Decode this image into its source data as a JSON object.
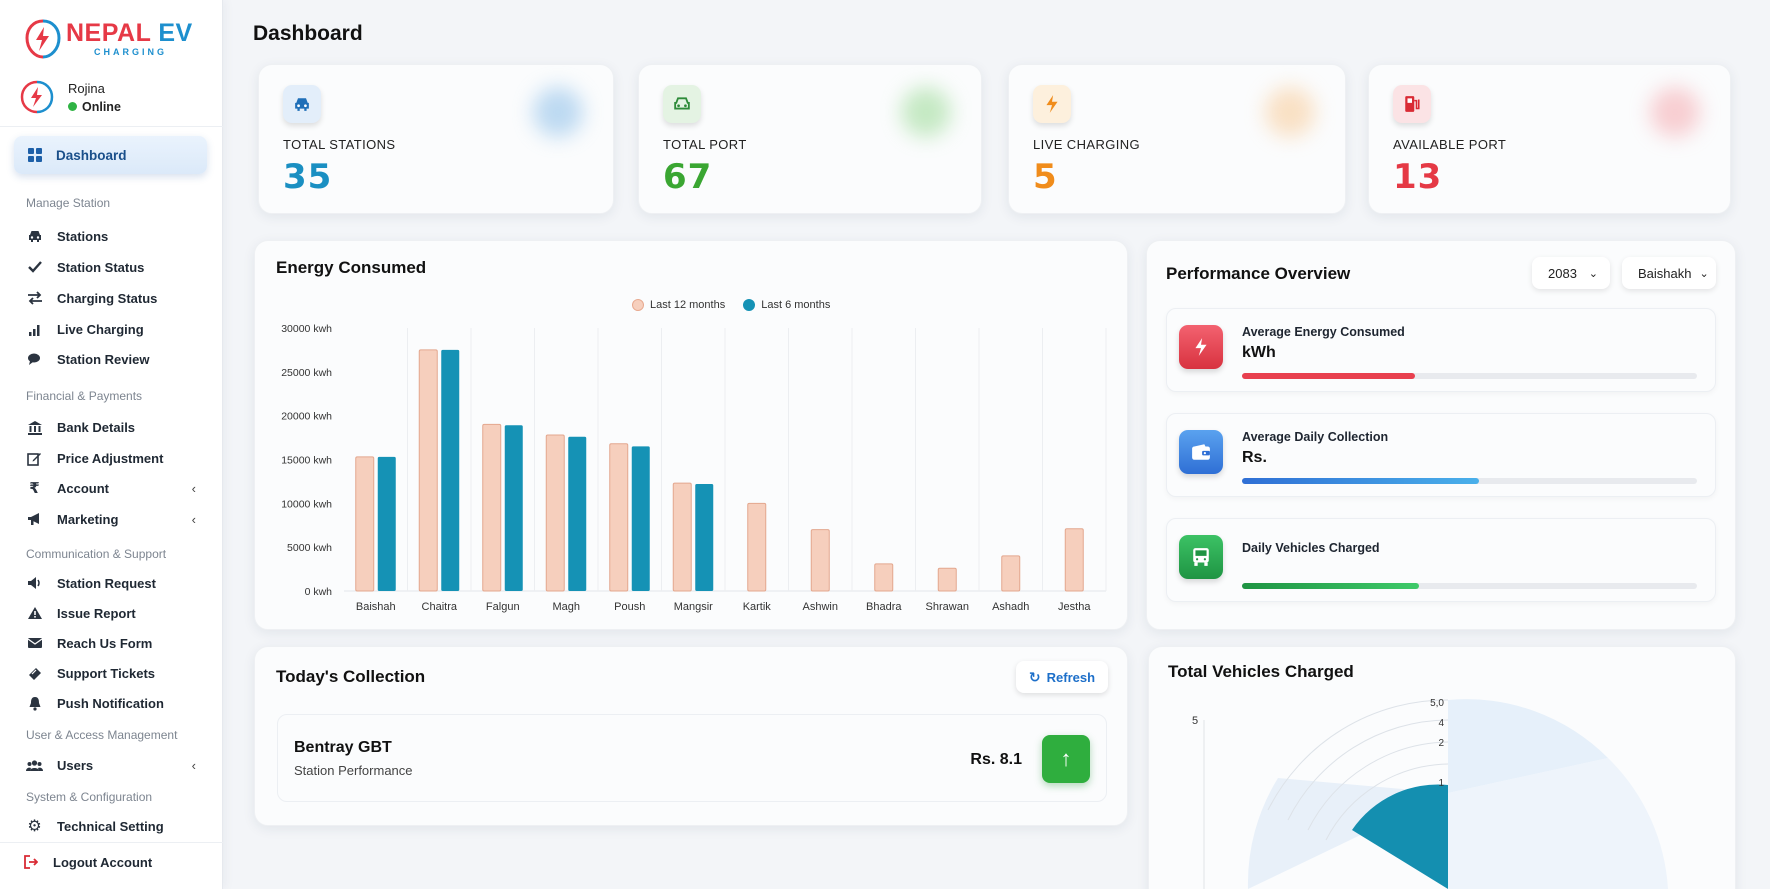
{
  "brand": {
    "name_a": "NEPAL",
    "name_b": "EV",
    "tagline": "CHARGING"
  },
  "user": {
    "name": "Rojina",
    "status": "Online"
  },
  "sidebar": {
    "active": {
      "label": "Dashboard",
      "icon": "grid-icon"
    },
    "sections": [
      {
        "title": "Manage Station",
        "items": [
          {
            "label": "Stations",
            "icon": "car-icon"
          },
          {
            "label": "Station Status",
            "icon": "check-icon"
          },
          {
            "label": "Charging Status",
            "icon": "swap-icon"
          },
          {
            "label": "Live Charging",
            "icon": "signal-icon"
          },
          {
            "label": "Station Review",
            "icon": "comments-icon"
          }
        ]
      },
      {
        "title": "Financial & Payments",
        "items": [
          {
            "label": "Bank Details",
            "icon": "bank-icon"
          },
          {
            "label": "Price Adjustment",
            "icon": "edit-icon"
          },
          {
            "label": "Account",
            "icon": "rupee-icon"
          },
          {
            "label": "Marketing",
            "icon": "megaphone-icon"
          }
        ]
      },
      {
        "title": "Communication & Support",
        "items": [
          {
            "label": "Station Request",
            "icon": "speaker-icon"
          },
          {
            "label": "Issue Report",
            "icon": "warning-icon"
          },
          {
            "label": "Reach Us Form",
            "icon": "envelope-icon"
          },
          {
            "label": "Support Tickets",
            "icon": "ticket-icon"
          },
          {
            "label": "Push Notification",
            "icon": "bell-icon"
          }
        ]
      },
      {
        "title": "User & Access Management",
        "items": [
          {
            "label": "Users",
            "icon": "users-icon"
          }
        ]
      },
      {
        "title": "System & Configuration",
        "items": [
          {
            "label": "Technical Setting",
            "icon": "gear-icon"
          }
        ]
      }
    ],
    "logout": "Logout Account"
  },
  "page": {
    "title": "Dashboard"
  },
  "stats": [
    {
      "label": "TOTAL STATIONS",
      "value": "35",
      "color": "#1a8fc2",
      "icon": "car-icon"
    },
    {
      "label": "TOTAL PORT",
      "value": "67",
      "color": "#3aa632",
      "icon": "car-port-icon"
    },
    {
      "label": "LIVE CHARGING",
      "value": "5",
      "color": "#f08c1b",
      "icon": "bolt-icon"
    },
    {
      "label": "AVAILABLE PORT",
      "value": "13",
      "color": "#e53945",
      "icon": "fuel-icon"
    }
  ],
  "energy": {
    "title": "Energy Consumed"
  },
  "chart_data": [
    {
      "type": "bar",
      "title": "Energy Consumed",
      "categories": [
        "Baishah",
        "Chaitra",
        "Falgun",
        "Magh",
        "Poush",
        "Mangsir",
        "Kartik",
        "Ashwin",
        "Bhadra",
        "Shrawan",
        "Ashadh",
        "Jestha"
      ],
      "series": [
        {
          "name": "Last 12 months",
          "color": "#f6cfbd",
          "values": [
            15300,
            27500,
            19000,
            17800,
            16800,
            12300,
            10000,
            7000,
            3100,
            2600,
            4000,
            7100
          ]
        },
        {
          "name": "Last 6 months",
          "color": "#1592b5",
          "values": [
            15300,
            27500,
            18900,
            17600,
            16500,
            12200,
            null,
            null,
            null,
            null,
            null,
            null
          ]
        }
      ],
      "ylim": [
        0,
        30000
      ],
      "yticks": [
        "0 kwh",
        "5000 kwh",
        "10000 kwh",
        "15000 kwh",
        "20000 kwh",
        "25000 kwh",
        "30000 kwh"
      ],
      "legend": "top-center"
    }
  ],
  "performance": {
    "title": "Performance Overview",
    "year": "2083",
    "month": "Baishakh",
    "items": [
      {
        "title": "Average Energy Consumed",
        "value": "kWh",
        "progress": 0.38,
        "color": "#e8404f",
        "icon": "bolt-icon"
      },
      {
        "title": "Average Daily Collection",
        "value": "Rs.",
        "progress": 0.52,
        "color": "#3b7de0",
        "icon": "wallet-icon"
      },
      {
        "title": "Daily Vehicles Charged",
        "value": "",
        "progress": 0.39,
        "color": "#27a64a",
        "icon": "bus-icon"
      }
    ]
  },
  "collection": {
    "title": "Today's Collection",
    "refresh": "Refresh",
    "items": [
      {
        "name": "Bentray GBT",
        "sub": "Station Performance",
        "amount": "Rs. 8.1"
      }
    ]
  },
  "vehicles": {
    "title": "Total Vehicles Charged",
    "axis_left": "5",
    "ticks": [
      "5,0",
      "4",
      "2",
      "1"
    ]
  }
}
